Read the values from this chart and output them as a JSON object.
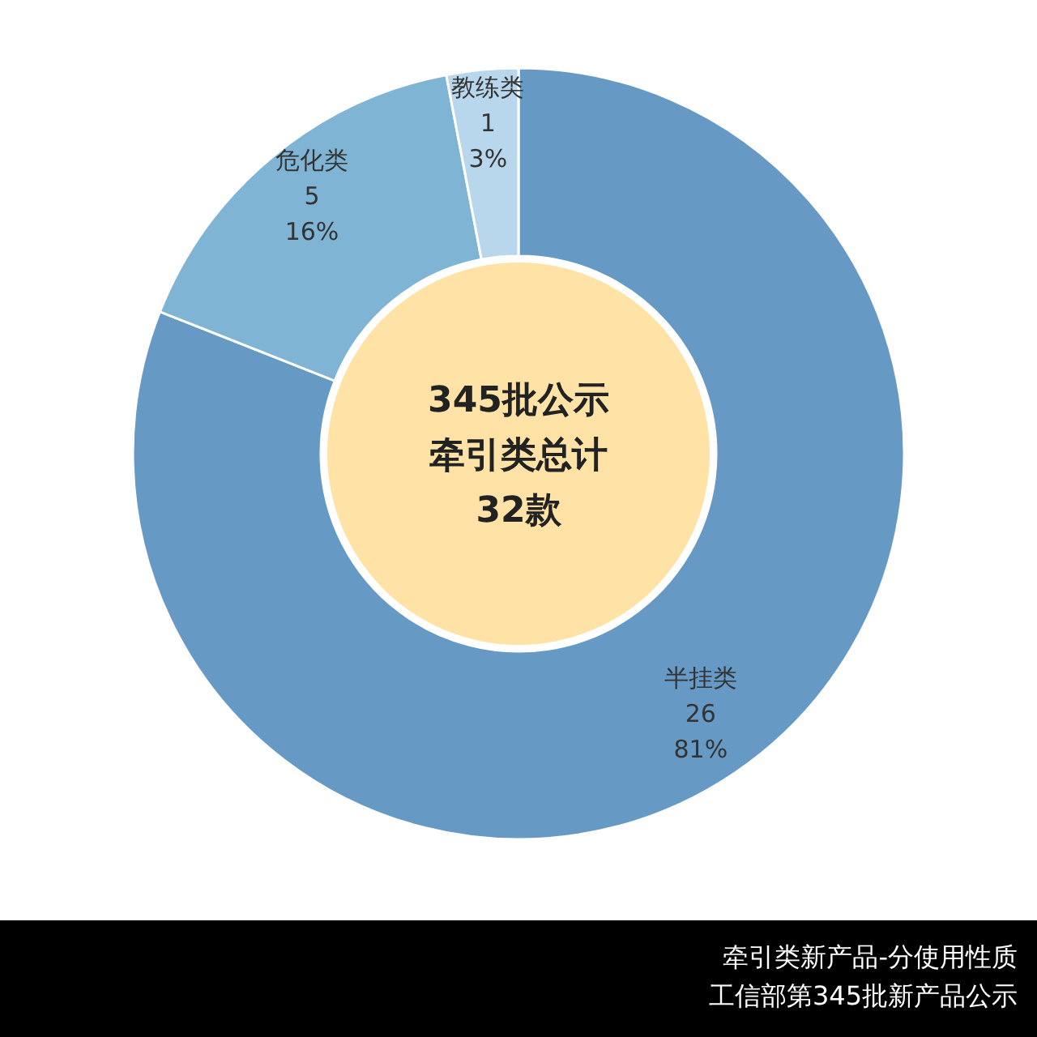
{
  "chart_data": {
    "type": "donut",
    "categories": [
      "半挂类",
      "危化类",
      "教练类"
    ],
    "values": [
      81,
      16,
      3
    ],
    "colors": [
      "#6699c4",
      "#80b4d4",
      "#b8d7ec"
    ],
    "value_labels": [
      "81%",
      "16%",
      "3%"
    ],
    "annotations": [
      "345批公示",
      "牵引类总计",
      "32款",
      {
        "text": "26",
        "x": "半挂类"
      },
      {
        "text": "5",
        "x": "危化类"
      },
      {
        "text": "1",
        "x": "教练类"
      },
      "牵引类新产品-分使用性质",
      "工信部第345批新产品公示"
    ]
  }
}
